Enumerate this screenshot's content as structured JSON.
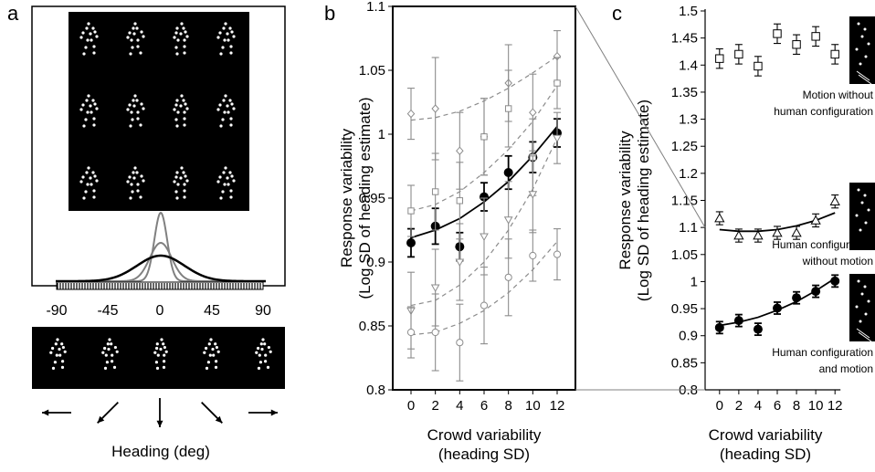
{
  "panel_labels": {
    "a": "a",
    "b": "b",
    "c": "c"
  },
  "panel_a": {
    "heading_ticks": [
      "-90",
      "-45",
      "0",
      "45",
      "90"
    ],
    "xlabel": "Heading (deg)",
    "stimulus_grid": {
      "rows": 3,
      "cols": 4
    },
    "heading_examples": 5
  },
  "chart_data": [
    {
      "type": "scatter",
      "panel": "b",
      "x": [
        0,
        2,
        4,
        6,
        8,
        10,
        12
      ],
      "xlim": [
        -1.5,
        13.5
      ],
      "ylim": [
        0.8,
        1.1
      ],
      "yticks": [
        0.8,
        0.85,
        0.9,
        0.95,
        1,
        1.05,
        1.1
      ],
      "ytick_labels": [
        "0.8",
        "0.85",
        "0.9",
        "0.95",
        "1",
        "1.05",
        "1.1"
      ],
      "xtick_labels": [
        "0",
        "2",
        "4",
        "6",
        "8",
        "10",
        "12"
      ],
      "ylabel": [
        "Response variability",
        "(Log SD of heading estimate)"
      ],
      "xlabel": [
        "Crowd variability",
        "(heading SD)"
      ],
      "series": [
        {
          "marker": "filled-circle",
          "fit": "solid",
          "values": [
            0.915,
            0.928,
            0.912,
            0.951,
            0.97,
            0.982,
            1.001
          ],
          "err": [
            0.011,
            0.014,
            0.011,
            0.011,
            0.013,
            0.012,
            0.011
          ],
          "fit_values": [
            0.919,
            0.925,
            0.934,
            0.947,
            0.963,
            0.983,
            1.006
          ]
        },
        {
          "marker": "diamond",
          "fit": "dashed",
          "values": [
            1.016,
            1.02,
            0.987,
            0.998,
            1.04,
            1.017,
            1.061
          ],
          "err": [
            0.02,
            0.04,
            0.03,
            0.03,
            0.03,
            0.03,
            0.02
          ],
          "fit_values": [
            1.011,
            1.013,
            1.018,
            1.026,
            1.036,
            1.048,
            1.061
          ]
        },
        {
          "marker": "square",
          "fit": "dashed",
          "values": [
            0.94,
            0.955,
            0.948,
            0.998,
            1.02,
            0.982,
            1.04
          ],
          "err": [
            0.02,
            0.03,
            0.03,
            0.03,
            0.03,
            0.03,
            0.02
          ],
          "fit_values": [
            0.94,
            0.945,
            0.955,
            0.97,
            0.988,
            1.01,
            1.038
          ]
        },
        {
          "marker": "triangle-down",
          "fit": "dashed",
          "values": [
            0.862,
            0.88,
            0.9,
            0.92,
            0.933,
            0.953,
            0.997
          ],
          "err": [
            0.03,
            0.03,
            0.03,
            0.03,
            0.03,
            0.03,
            0.02
          ],
          "fit_values": [
            0.866,
            0.87,
            0.882,
            0.9,
            0.925,
            0.957,
            0.997
          ]
        },
        {
          "marker": "open-circle",
          "fit": "dashed",
          "values": [
            0.845,
            0.845,
            0.837,
            0.866,
            0.888,
            0.905,
            0.906
          ],
          "err": [
            0.02,
            0.03,
            0.03,
            0.03,
            0.03,
            0.02,
            0.02
          ],
          "fit_values": [
            0.843,
            0.845,
            0.852,
            0.862,
            0.876,
            0.894,
            0.916
          ]
        }
      ]
    },
    {
      "type": "scatter",
      "panel": "c",
      "x": [
        0,
        2,
        4,
        6,
        8,
        10,
        12
      ],
      "xlim": [
        -1.5,
        13.5
      ],
      "ylim": [
        0.8,
        1.5
      ],
      "yticks": [
        0.8,
        0.85,
        0.9,
        0.95,
        1,
        1.05,
        1.1,
        1.15,
        1.2,
        1.25,
        1.3,
        1.35,
        1.4,
        1.45,
        1.5
      ],
      "ytick_labels": [
        "0.8",
        "0.85",
        "0.9",
        "0.95",
        "1",
        "1.05",
        "1.1",
        "1.15",
        "1.2",
        "1.25",
        "1.3",
        "1.35",
        "1.4",
        "1.45",
        "1.5"
      ],
      "xtick_labels": [
        "0",
        "2",
        "4",
        "6",
        "8",
        "10",
        "12"
      ],
      "ylabel": [
        "Response variability",
        "(Log SD of heading estimate)"
      ],
      "xlabel": [
        "Crowd variability",
        "(heading SD)"
      ],
      "series": [
        {
          "name": "Motion without human configuration",
          "label_lines": [
            "Motion without",
            "human configuration"
          ],
          "marker": "open-square",
          "values": [
            1.412,
            1.42,
            1.398,
            1.458,
            1.438,
            1.453,
            1.42
          ],
          "err": [
            0.018,
            0.018,
            0.018,
            0.018,
            0.018,
            0.018,
            0.018
          ]
        },
        {
          "name": "Human configuration without motion",
          "label_lines": [
            "Human configuration",
            "without motion"
          ],
          "marker": "open-triangle",
          "fit": "solid",
          "values": [
            1.117,
            1.085,
            1.085,
            1.09,
            1.09,
            1.113,
            1.148
          ],
          "err": [
            0.012,
            0.012,
            0.012,
            0.012,
            0.012,
            0.012,
            0.012
          ],
          "fit_values": [
            1.096,
            1.093,
            1.093,
            1.096,
            1.103,
            1.113,
            1.127
          ]
        },
        {
          "name": "Human configuration and motion",
          "label_lines": [
            "Human configuration",
            "and motion"
          ],
          "marker": "filled-circle",
          "fit": "solid",
          "values": [
            0.915,
            0.928,
            0.912,
            0.951,
            0.97,
            0.982,
            1.001
          ],
          "err": [
            0.011,
            0.011,
            0.011,
            0.011,
            0.011,
            0.011,
            0.011
          ],
          "fit_values": [
            0.919,
            0.925,
            0.934,
            0.947,
            0.963,
            0.983,
            1.006
          ]
        }
      ]
    }
  ]
}
